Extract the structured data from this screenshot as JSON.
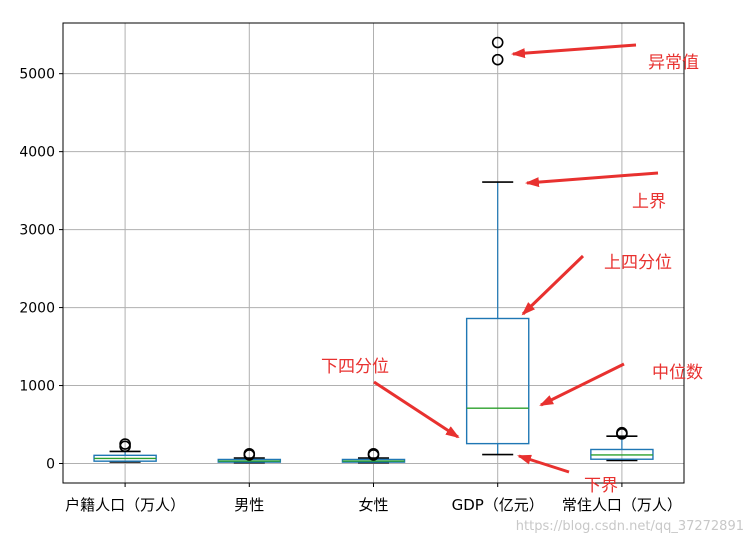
{
  "chart_data": {
    "type": "box",
    "categories": [
      "户籍人口（万人）",
      "男性",
      "女性",
      "GDP（亿元）",
      "常住人口（万人）"
    ],
    "ylim": [
      -250,
      5650
    ],
    "yticks": [
      0,
      1000,
      2000,
      3000,
      4000,
      5000
    ],
    "grid": true,
    "boxes": [
      {
        "whislo": 20,
        "q1": 30,
        "med": 65,
        "q3": 105,
        "whishi": 155,
        "fliers": [
          220,
          250
        ]
      },
      {
        "whislo": 10,
        "q1": 18,
        "med": 32,
        "q3": 52,
        "whishi": 70,
        "fliers": [
          110,
          125
        ]
      },
      {
        "whislo": 10,
        "q1": 18,
        "med": 32,
        "q3": 52,
        "whishi": 70,
        "fliers": [
          110,
          125
        ]
      },
      {
        "whislo": 115,
        "q1": 255,
        "med": 710,
        "q3": 1860,
        "whishi": 3610,
        "fliers": [
          5180,
          5400
        ]
      },
      {
        "whislo": 40,
        "q1": 55,
        "med": 110,
        "q3": 180,
        "whishi": 350,
        "fliers": [
          380,
          395
        ]
      }
    ],
    "box_color": "#1f77b4",
    "median_color": "#2ca02c",
    "whisker_color": "#000000",
    "grid_color": "#b0b0b0"
  },
  "annotations": {
    "color": "#e8312f",
    "outlier": "异常值",
    "upper_whisker": "上界",
    "upper_quartile": "上四分位",
    "lower_quartile": "下四分位",
    "median": "中位数",
    "lower_whisker": "下界"
  },
  "watermark": "https://blog.csdn.net/qq_37272891"
}
